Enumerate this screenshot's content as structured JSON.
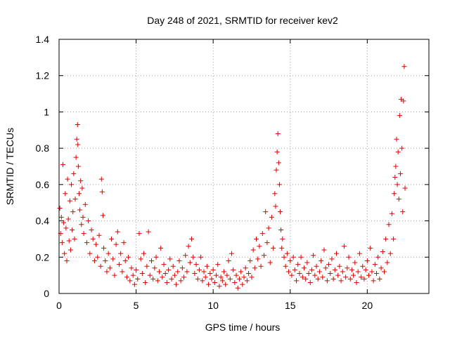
{
  "chart_data": {
    "type": "scatter",
    "title": "Day 248 of 2021, SRMTID for receiver kev2",
    "xlabel": "GPS time / hours",
    "ylabel": "SRMTID / TECUs",
    "xlim": [
      0,
      24
    ],
    "ylim": [
      0,
      1.4
    ],
    "xticks": [
      0,
      5,
      10,
      15,
      20
    ],
    "xtick_labels": [
      "0",
      "5",
      "10",
      "15",
      "20"
    ],
    "yticks": [
      0,
      0.2,
      0.4,
      0.6,
      0.8,
      1.0,
      1.2,
      1.4
    ],
    "ytick_labels": [
      "0",
      "0.2",
      "0.4",
      "0.6",
      "0.8",
      "1",
      "1.2",
      "1.4"
    ],
    "grid": true,
    "marker": "+",
    "color": "#e00000",
    "series": [
      {
        "name": "kev2",
        "points": [
          [
            0.05,
            0.47
          ],
          [
            0.1,
            0.33
          ],
          [
            0.15,
            0.42
          ],
          [
            0.2,
            0.28
          ],
          [
            0.25,
            0.71
          ],
          [
            0.3,
            0.39
          ],
          [
            0.35,
            0.22
          ],
          [
            0.4,
            0.55
          ],
          [
            0.45,
            0.36
          ],
          [
            0.5,
            0.18
          ],
          [
            0.55,
            0.63
          ],
          [
            0.6,
            0.41
          ],
          [
            0.65,
            0.29
          ],
          [
            0.7,
            0.51
          ],
          [
            0.75,
            0.24
          ],
          [
            0.8,
            0.6
          ],
          [
            0.85,
            0.35
          ],
          [
            0.9,
            0.45
          ],
          [
            0.95,
            0.66
          ],
          [
            1.0,
            0.3
          ],
          [
            1.05,
            0.52
          ],
          [
            1.1,
            0.75
          ],
          [
            1.15,
            0.85
          ],
          [
            1.2,
            0.93
          ],
          [
            1.22,
            0.82
          ],
          [
            1.25,
            0.7
          ],
          [
            1.3,
            0.55
          ],
          [
            1.35,
            0.46
          ],
          [
            1.4,
            0.62
          ],
          [
            1.45,
            0.38
          ],
          [
            1.5,
            0.58
          ],
          [
            1.55,
            0.42
          ],
          [
            1.6,
            0.33
          ],
          [
            1.7,
            0.49
          ],
          [
            1.8,
            0.28
          ],
          [
            1.9,
            0.4
          ],
          [
            2.0,
            0.22
          ],
          [
            2.1,
            0.35
          ],
          [
            2.2,
            0.3
          ],
          [
            2.3,
            0.18
          ],
          [
            2.4,
            0.27
          ],
          [
            2.5,
            0.2
          ],
          [
            2.6,
            0.32
          ],
          [
            2.7,
            0.15
          ],
          [
            2.75,
            0.63
          ],
          [
            2.8,
            0.56
          ],
          [
            2.85,
            0.43
          ],
          [
            2.9,
            0.25
          ],
          [
            3.0,
            0.18
          ],
          [
            3.1,
            0.12
          ],
          [
            3.2,
            0.22
          ],
          [
            3.3,
            0.14
          ],
          [
            3.4,
            0.3
          ],
          [
            3.5,
            0.19
          ],
          [
            3.6,
            0.1
          ],
          [
            3.7,
            0.27
          ],
          [
            3.8,
            0.34
          ],
          [
            3.9,
            0.16
          ],
          [
            4.0,
            0.22
          ],
          [
            4.1,
            0.12
          ],
          [
            4.2,
            0.28
          ],
          [
            4.3,
            0.18
          ],
          [
            4.4,
            0.09
          ],
          [
            4.5,
            0.2
          ],
          [
            4.6,
            0.07
          ],
          [
            4.7,
            0.14
          ],
          [
            4.8,
            0.1
          ],
          [
            4.9,
            0.05
          ],
          [
            5.0,
            0.13
          ],
          [
            5.1,
            0.08
          ],
          [
            5.2,
            0.33
          ],
          [
            5.3,
            0.19
          ],
          [
            5.4,
            0.11
          ],
          [
            5.5,
            0.22
          ],
          [
            5.6,
            0.06
          ],
          [
            5.7,
            0.15
          ],
          [
            5.8,
            0.34
          ],
          [
            5.9,
            0.1
          ],
          [
            6.0,
            0.18
          ],
          [
            6.1,
            0.08
          ],
          [
            6.2,
            0.14
          ],
          [
            6.3,
            0.2
          ],
          [
            6.4,
            0.07
          ],
          [
            6.5,
            0.12
          ],
          [
            6.6,
            0.25
          ],
          [
            6.7,
            0.09
          ],
          [
            6.8,
            0.16
          ],
          [
            6.9,
            0.11
          ],
          [
            7.0,
            0.06
          ],
          [
            7.1,
            0.13
          ],
          [
            7.2,
            0.19
          ],
          [
            7.3,
            0.08
          ],
          [
            7.4,
            0.15
          ],
          [
            7.5,
            0.1
          ],
          [
            7.6,
            0.05
          ],
          [
            7.7,
            0.12
          ],
          [
            7.8,
            0.18
          ],
          [
            7.9,
            0.07
          ],
          [
            8.0,
            0.14
          ],
          [
            8.1,
            0.09
          ],
          [
            8.2,
            0.21
          ],
          [
            8.3,
            0.12
          ],
          [
            8.4,
            0.26
          ],
          [
            8.5,
            0.17
          ],
          [
            8.6,
            0.3
          ],
          [
            8.7,
            0.2
          ],
          [
            8.8,
            0.11
          ],
          [
            8.9,
            0.16
          ],
          [
            9.0,
            0.08
          ],
          [
            9.1,
            0.13
          ],
          [
            9.2,
            0.2
          ],
          [
            9.3,
            0.07
          ],
          [
            9.4,
            0.12
          ],
          [
            9.5,
            0.09
          ],
          [
            9.6,
            0.15
          ],
          [
            9.7,
            0.05
          ],
          [
            9.8,
            0.11
          ],
          [
            9.9,
            0.08
          ],
          [
            10.0,
            0.13
          ],
          [
            10.1,
            0.06
          ],
          [
            10.2,
            0.1
          ],
          [
            10.3,
            0.16
          ],
          [
            10.4,
            0.04
          ],
          [
            10.5,
            0.09
          ],
          [
            10.6,
            0.07
          ],
          [
            10.7,
            0.12
          ],
          [
            10.8,
            0.05
          ],
          [
            10.9,
            0.1
          ],
          [
            11.0,
            0.18
          ],
          [
            11.1,
            0.08
          ],
          [
            11.2,
            0.22
          ],
          [
            11.3,
            0.13
          ],
          [
            11.4,
            0.06
          ],
          [
            11.5,
            0.1
          ],
          [
            11.6,
            0.03
          ],
          [
            11.7,
            0.08
          ],
          [
            11.8,
            0.12
          ],
          [
            11.9,
            0.05
          ],
          [
            12.0,
            0.09
          ],
          [
            12.1,
            0.14
          ],
          [
            12.2,
            0.07
          ],
          [
            12.3,
            0.11
          ],
          [
            12.4,
            0.18
          ],
          [
            12.5,
            0.09
          ],
          [
            12.6,
            0.24
          ],
          [
            12.7,
            0.14
          ],
          [
            12.8,
            0.3
          ],
          [
            12.9,
            0.19
          ],
          [
            13.0,
            0.26
          ],
          [
            13.1,
            0.15
          ],
          [
            13.2,
            0.33
          ],
          [
            13.3,
            0.21
          ],
          [
            13.4,
            0.45
          ],
          [
            13.5,
            0.28
          ],
          [
            13.6,
            0.36
          ],
          [
            13.7,
            0.17
          ],
          [
            13.8,
            0.42
          ],
          [
            13.9,
            0.25
          ],
          [
            14.0,
            0.55
          ],
          [
            14.05,
            0.48
          ],
          [
            14.1,
            0.68
          ],
          [
            14.15,
            0.78
          ],
          [
            14.2,
            0.88
          ],
          [
            14.25,
            0.72
          ],
          [
            14.3,
            0.6
          ],
          [
            14.35,
            0.45
          ],
          [
            14.4,
            0.35
          ],
          [
            14.45,
            0.25
          ],
          [
            14.5,
            0.3
          ],
          [
            14.6,
            0.2
          ],
          [
            14.7,
            0.15
          ],
          [
            14.8,
            0.22
          ],
          [
            14.9,
            0.12
          ],
          [
            15.0,
            0.18
          ],
          [
            15.1,
            0.1
          ],
          [
            15.2,
            0.2
          ],
          [
            15.3,
            0.13
          ],
          [
            15.4,
            0.07
          ],
          [
            15.5,
            0.16
          ],
          [
            15.6,
            0.11
          ],
          [
            15.7,
            0.2
          ],
          [
            15.8,
            0.09
          ],
          [
            15.9,
            0.14
          ],
          [
            16.0,
            0.08
          ],
          [
            16.1,
            0.17
          ],
          [
            16.2,
            0.11
          ],
          [
            16.3,
            0.06
          ],
          [
            16.4,
            0.13
          ],
          [
            16.5,
            0.21
          ],
          [
            16.6,
            0.1
          ],
          [
            16.7,
            0.15
          ],
          [
            16.8,
            0.08
          ],
          [
            16.9,
            0.12
          ],
          [
            17.0,
            0.18
          ],
          [
            17.1,
            0.09
          ],
          [
            17.2,
            0.24
          ],
          [
            17.3,
            0.14
          ],
          [
            17.4,
            0.07
          ],
          [
            17.5,
            0.16
          ],
          [
            17.6,
            0.11
          ],
          [
            17.7,
            0.19
          ],
          [
            17.8,
            0.08
          ],
          [
            17.9,
            0.13
          ],
          [
            18.0,
            0.22
          ],
          [
            18.1,
            0.1
          ],
          [
            18.2,
            0.15
          ],
          [
            18.3,
            0.07
          ],
          [
            18.4,
            0.12
          ],
          [
            18.5,
            0.26
          ],
          [
            18.6,
            0.09
          ],
          [
            18.7,
            0.14
          ],
          [
            18.8,
            0.2
          ],
          [
            18.9,
            0.08
          ],
          [
            19.0,
            0.13
          ],
          [
            19.1,
            0.1
          ],
          [
            19.2,
            0.17
          ],
          [
            19.3,
            0.06
          ],
          [
            19.4,
            0.12
          ],
          [
            19.5,
            0.22
          ],
          [
            19.6,
            0.09
          ],
          [
            19.7,
            0.15
          ],
          [
            19.8,
            0.08
          ],
          [
            19.9,
            0.13
          ],
          [
            20.0,
            0.18
          ],
          [
            20.1,
            0.1
          ],
          [
            20.2,
            0.25
          ],
          [
            20.3,
            0.12
          ],
          [
            20.4,
            0.07
          ],
          [
            20.5,
            0.16
          ],
          [
            20.6,
            0.11
          ],
          [
            20.7,
            0.2
          ],
          [
            20.8,
            0.08
          ],
          [
            20.9,
            0.14
          ],
          [
            21.0,
            0.23
          ],
          [
            21.1,
            0.12
          ],
          [
            21.2,
            0.3
          ],
          [
            21.3,
            0.17
          ],
          [
            21.4,
            0.38
          ],
          [
            21.5,
            0.22
          ],
          [
            21.6,
            0.44
          ],
          [
            21.7,
            0.3
          ],
          [
            21.75,
            0.55
          ],
          [
            21.8,
            0.64
          ],
          [
            21.85,
            0.7
          ],
          [
            21.9,
            0.85
          ],
          [
            21.95,
            0.6
          ],
          [
            22.0,
            0.78
          ],
          [
            22.05,
            0.52
          ],
          [
            22.1,
            0.98
          ],
          [
            22.15,
            0.66
          ],
          [
            22.2,
            1.07
          ],
          [
            22.25,
            0.8
          ],
          [
            22.3,
            0.45
          ],
          [
            22.35,
            1.06
          ],
          [
            22.4,
            1.25
          ],
          [
            22.45,
            0.58
          ]
        ]
      }
    ]
  }
}
